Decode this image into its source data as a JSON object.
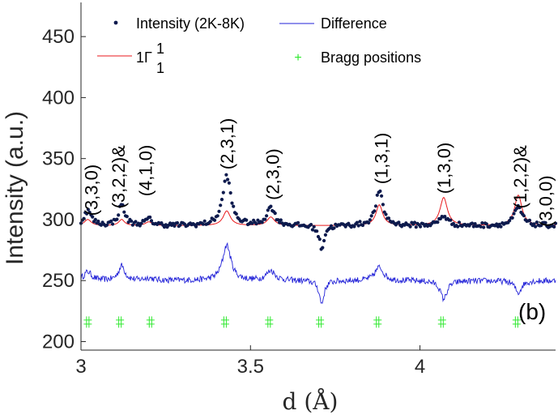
{
  "chart_data": {
    "type": "line",
    "xlabel": "d (Å)",
    "ylabel": "Intensity (a.u.)",
    "xlim": [
      3.0,
      4.4
    ],
    "ylim": [
      193,
      478
    ],
    "xticks": [
      3,
      3.5,
      4
    ],
    "yticks": [
      200,
      250,
      300,
      350,
      400,
      450
    ],
    "x_tick_labels": [
      "3",
      "3.5",
      "4"
    ],
    "y_tick_labels": [
      "200",
      "250",
      "300",
      "350",
      "400",
      "450"
    ],
    "panel_label": "(b)",
    "legend": {
      "placement": "top",
      "entries": [
        {
          "key": "observed",
          "label": "Intensity (2K-8K)"
        },
        {
          "key": "difference",
          "label": "Difference"
        },
        {
          "key": "calc",
          "label": "1Γ",
          "superscript": "1",
          "subscript": "1"
        },
        {
          "key": "bragg",
          "label": "Bragg positions"
        }
      ]
    },
    "baseline": {
      "observed": 295,
      "calc": 295,
      "difference": 250
    },
    "peaks": [
      {
        "d": 3.02,
        "calc": 300,
        "obs": 307,
        "width": 0.012
      },
      {
        "d": 3.12,
        "calc": 300,
        "obs": 312,
        "width": 0.01
      },
      {
        "d": 3.2,
        "calc": 298,
        "obs": 300,
        "width": 0.012
      },
      {
        "d": 3.43,
        "calc": 307,
        "obs": 336,
        "width": 0.013
      },
      {
        "d": 3.56,
        "calc": 302,
        "obs": 310,
        "width": 0.013
      },
      {
        "d": 3.71,
        "calc": 295,
        "obs": 276,
        "width": 0.008
      },
      {
        "d": 3.88,
        "calc": 312,
        "obs": 323,
        "width": 0.012
      },
      {
        "d": 4.07,
        "calc": 318,
        "obs": 303,
        "width": 0.013
      },
      {
        "d": 4.29,
        "calc": 320,
        "obs": 310,
        "width": 0.013
      }
    ],
    "bragg_positions": [
      3.02,
      3.115,
      3.205,
      3.425,
      3.555,
      3.705,
      3.875,
      4.065,
      4.285
    ],
    "bragg_y": 216,
    "peak_labels": [
      {
        "text": "(3,3,0)",
        "d": 3.03,
        "y": 303
      },
      {
        "text": "(3,2,2)&",
        "d": 3.11,
        "y": 309
      },
      {
        "text": "(4,1,0)",
        "d": 3.19,
        "y": 319
      },
      {
        "text": "(2,3,1)",
        "d": 3.43,
        "y": 341
      },
      {
        "text": "(2,3,0)",
        "d": 3.565,
        "y": 316
      },
      {
        "text": "(1,3,1)",
        "d": 3.885,
        "y": 329
      },
      {
        "text": "(1,3,0)",
        "d": 4.07,
        "y": 321
      },
      {
        "text": "(1,2,2)&",
        "d": 4.295,
        "y": 309
      },
      {
        "text": "(3,0,0)",
        "d": 4.37,
        "y": 294
      }
    ],
    "colors": {
      "observed": "#0d1a4d",
      "calc": "#e8191c",
      "difference": "#2222d8",
      "bragg": "#2ee82e",
      "axis": "#262626"
    }
  }
}
